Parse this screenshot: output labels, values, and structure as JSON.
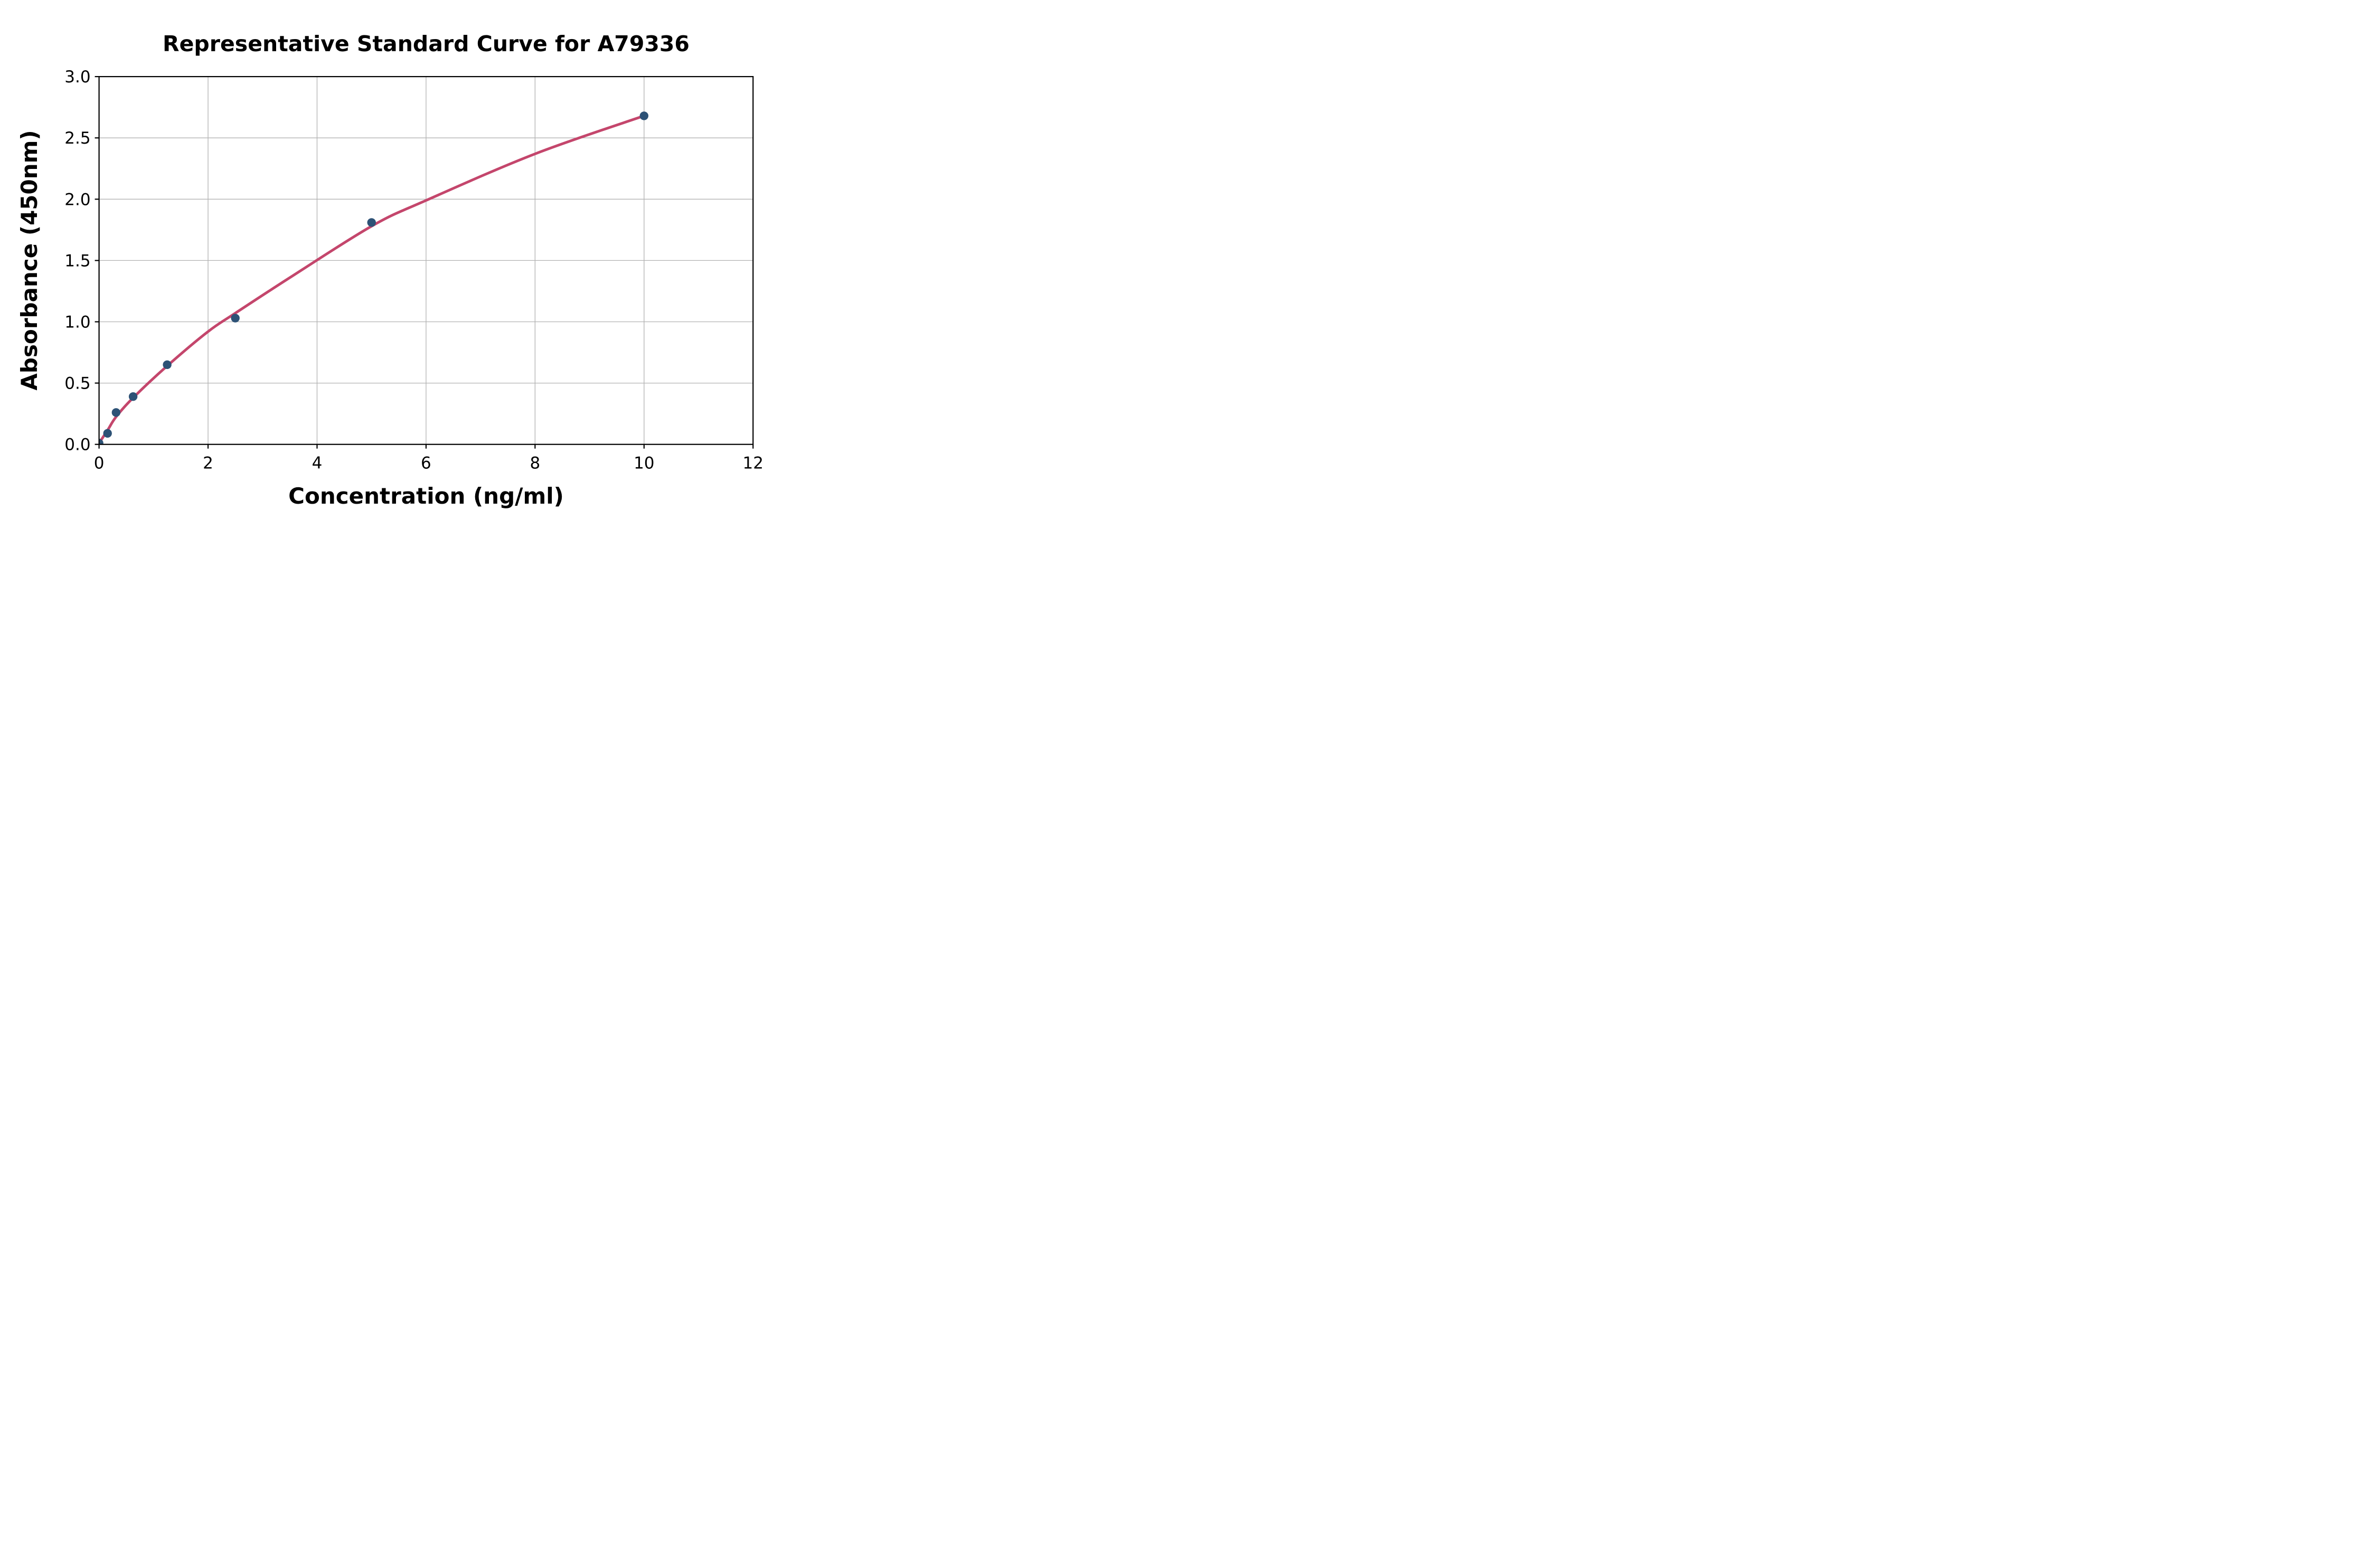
{
  "figure": {
    "background_color": "#ffffff"
  },
  "chart_data": {
    "type": "scatter",
    "title": "Representative Standard Curve for A79336",
    "xlabel": "Concentration (ng/ml)",
    "ylabel": "Absorbance (450nm)",
    "xlim": [
      0,
      12
    ],
    "ylim": [
      0.0,
      3.0
    ],
    "x_ticks": [
      0,
      2,
      4,
      6,
      8,
      10,
      12
    ],
    "x_tick_labels": [
      "0",
      "2",
      "4",
      "6",
      "8",
      "10",
      "12"
    ],
    "y_ticks": [
      0.0,
      0.5,
      1.0,
      1.5,
      2.0,
      2.5,
      3.0
    ],
    "y_tick_labels": [
      "0.0",
      "0.5",
      "1.0",
      "1.5",
      "2.0",
      "2.5",
      "3.0"
    ],
    "grid": true,
    "legend": null,
    "series": [
      {
        "name": "standard-data-points",
        "type": "scatter",
        "marker": "circle",
        "color": "#2D5276",
        "points": [
          {
            "x": 0.0,
            "y": 0.01
          },
          {
            "x": 0.156,
            "y": 0.09
          },
          {
            "x": 0.3125,
            "y": 0.26
          },
          {
            "x": 0.625,
            "y": 0.39
          },
          {
            "x": 1.25,
            "y": 0.65
          },
          {
            "x": 2.5,
            "y": 1.03
          },
          {
            "x": 5.0,
            "y": 1.81
          },
          {
            "x": 10.0,
            "y": 2.68
          }
        ]
      },
      {
        "name": "fitted-standard-curve",
        "type": "line",
        "color": "#C4466C",
        "points": [
          {
            "x": 0.0,
            "y": 0.01
          },
          {
            "x": 0.156,
            "y": 0.115
          },
          {
            "x": 0.3125,
            "y": 0.225
          },
          {
            "x": 0.625,
            "y": 0.38
          },
          {
            "x": 1.25,
            "y": 0.64
          },
          {
            "x": 2.0,
            "y": 0.92
          },
          {
            "x": 2.5,
            "y": 1.07
          },
          {
            "x": 3.5,
            "y": 1.36
          },
          {
            "x": 5.0,
            "y": 1.78
          },
          {
            "x": 6.0,
            "y": 1.99
          },
          {
            "x": 8.0,
            "y": 2.37
          },
          {
            "x": 10.0,
            "y": 2.68
          }
        ]
      }
    ],
    "grid_color": "#B3B3B3",
    "axis_color": "#000000",
    "plot_background": "#FFFFFF"
  }
}
